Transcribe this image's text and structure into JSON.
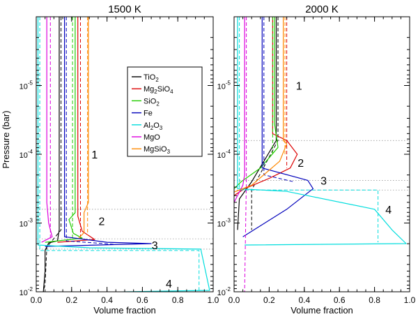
{
  "figure": {
    "ylabel": "Pressure (bar)",
    "legend": {
      "placement": "inside-left-panel",
      "entries": [
        {
          "key": "TiO2",
          "base": "TiO",
          "sub": "2",
          "tail": "",
          "color": "#000000"
        },
        {
          "key": "Mg2SiO4",
          "base": "Mg",
          "sub": "2",
          "tail": "SiO",
          "sub2": "4",
          "color": "#dd0000"
        },
        {
          "key": "SiO2",
          "base": "SiO",
          "sub": "2",
          "tail": "",
          "color": "#22cc00"
        },
        {
          "key": "Fe",
          "base": "Fe",
          "sub": "",
          "tail": "",
          "color": "#0000bb"
        },
        {
          "key": "Al2O3",
          "base": "Al",
          "sub": "2",
          "tail": "O",
          "sub2": "3",
          "color": "#00dddd"
        },
        {
          "key": "MgO",
          "base": "MgO",
          "sub": "",
          "tail": "",
          "color": "#dd00dd"
        },
        {
          "key": "MgSiO3",
          "base": "MgSiO",
          "sub": "3",
          "tail": "",
          "color": "#ff8800"
        }
      ]
    }
  },
  "chart_data": [
    {
      "type": "line",
      "title": "1500 K",
      "xlabel": "Volume fraction",
      "ylabel": "Pressure (bar)",
      "xlim": [
        0.0,
        1.0
      ],
      "ylim_log10": [
        -6.0,
        -2.0
      ],
      "y_inverted": true,
      "x_ticks": [
        "0.0",
        "0.2",
        "0.4",
        "0.6",
        "0.8",
        "1.0"
      ],
      "y_ticks": [
        {
          "exp": -5,
          "base": "10",
          "sup": "-5"
        },
        {
          "exp": -4,
          "base": "10",
          "sup": "-4"
        },
        {
          "exp": -3,
          "base": "10",
          "sup": "-3"
        },
        {
          "exp": -2,
          "base": "10",
          "sup": "-2"
        }
      ],
      "layer_boundaries_log10": [
        -3.2,
        -2.77,
        -2.62
      ],
      "annotations": [
        {
          "text": "1",
          "x": 0.33,
          "logp": -4.0
        },
        {
          "text": "2",
          "x": 0.37,
          "logp": -3.03
        },
        {
          "text": "3",
          "x": 0.67,
          "logp": -2.68
        },
        {
          "text": "4",
          "x": 0.75,
          "logp": -2.12
        }
      ],
      "series": [
        {
          "name": "TiO2",
          "color": "#000000",
          "solid": [
            [
              0.13,
              -6
            ],
            [
              0.13,
              -2.9
            ],
            [
              0.12,
              -2.74
            ],
            [
              0.07,
              -2.71
            ],
            [
              0.05,
              -2.6
            ],
            [
              0.05,
              -2.3
            ],
            [
              0.04,
              -2.0
            ]
          ],
          "dashed": [
            [
              0.14,
              -6
            ],
            [
              0.14,
              -2.9
            ],
            [
              0.06,
              -2.65
            ],
            [
              0.05,
              -2.1
            ],
            [
              0.04,
              -2.0
            ]
          ]
        },
        {
          "name": "Mg2SiO4",
          "color": "#dd0000",
          "solid": [
            [
              0.235,
              -6
            ],
            [
              0.235,
              -3.1
            ],
            [
              0.26,
              -2.88
            ],
            [
              0.33,
              -2.76
            ],
            [
              0.12,
              -2.72
            ]
          ],
          "dashed": [
            [
              0.25,
              -6
            ],
            [
              0.25,
              -2.78
            ]
          ]
        },
        {
          "name": "SiO2",
          "color": "#22cc00",
          "solid": [
            [
              0.22,
              -6
            ],
            [
              0.22,
              -3.15
            ],
            [
              0.185,
              -3.05
            ],
            [
              0.21,
              -2.85
            ],
            [
              0.26,
              -2.78
            ],
            [
              0.05,
              -2.72
            ]
          ],
          "dashed": [
            [
              0.205,
              -6
            ],
            [
              0.205,
              -2.78
            ]
          ]
        },
        {
          "name": "Fe",
          "color": "#0000bb",
          "solid": [
            [
              0.16,
              -6
            ],
            [
              0.16,
              -2.8
            ],
            [
              0.4,
              -2.72
            ],
            [
              0.65,
              -2.7
            ],
            [
              0.05,
              -2.66
            ]
          ],
          "dashed": [
            [
              0.17,
              -6
            ],
            [
              0.17,
              -2.74
            ],
            [
              0.44,
              -2.69
            ]
          ]
        },
        {
          "name": "Al2O3",
          "color": "#00dddd",
          "solid": [
            [
              0.01,
              -6
            ],
            [
              0.01,
              -2.68
            ],
            [
              0.3,
              -2.64
            ],
            [
              0.93,
              -2.62
            ],
            [
              0.98,
              -2.02
            ],
            [
              0.03,
              -1.98
            ]
          ],
          "dashed": [
            [
              0.02,
              -6
            ],
            [
              0.02,
              -2.6
            ],
            [
              0.92,
              -2.6
            ],
            [
              0.92,
              -2.0
            ]
          ]
        },
        {
          "name": "MgO",
          "color": "#dd00dd",
          "solid": [
            [
              0.06,
              -6
            ],
            [
              0.06,
              -3.3
            ],
            [
              0.07,
              -3.0
            ],
            [
              0.09,
              -2.8
            ],
            [
              0.03,
              -2.72
            ]
          ],
          "dashed": [
            [
              0.08,
              -6
            ],
            [
              0.08,
              -2.78
            ]
          ]
        },
        {
          "name": "MgSiO3",
          "color": "#ff8800",
          "solid": [
            [
              0.295,
              -6
            ],
            [
              0.295,
              -3.3
            ],
            [
              0.27,
              -3.15
            ],
            [
              0.27,
              -2.86
            ],
            [
              0.24,
              -2.78
            ]
          ],
          "dashed": [
            [
              0.29,
              -6
            ],
            [
              0.29,
              -2.82
            ]
          ]
        }
      ]
    },
    {
      "type": "line",
      "title": "2000 K",
      "xlabel": "Volume fraction",
      "ylabel": "",
      "xlim": [
        0.0,
        1.0
      ],
      "ylim_log10": [
        -6.0,
        -2.0
      ],
      "y_inverted": true,
      "x_ticks": [
        "0.0",
        "0.2",
        "0.4",
        "0.6",
        "0.8",
        "1.0"
      ],
      "y_ticks": [
        {
          "exp": -5,
          "base": "10",
          "sup": "-5"
        },
        {
          "exp": -4,
          "base": "10",
          "sup": "-4"
        },
        {
          "exp": -3,
          "base": "10",
          "sup": "-3"
        },
        {
          "exp": -2,
          "base": "10",
          "sup": "-2"
        }
      ],
      "layer_boundaries_log10": [
        -4.2,
        -3.62,
        -3.48
      ],
      "annotations": [
        {
          "text": "1",
          "x": 0.37,
          "logp": -5.0
        },
        {
          "text": "2",
          "x": 0.38,
          "logp": -3.88
        },
        {
          "text": "3",
          "x": 0.51,
          "logp": -3.62
        },
        {
          "text": "4",
          "x": 0.88,
          "logp": -3.2
        }
      ],
      "series": [
        {
          "name": "TiO2",
          "color": "#000000",
          "solid": [
            [
              0.24,
              -6
            ],
            [
              0.24,
              -4.2
            ],
            [
              0.1,
              -3.6
            ],
            [
              0.03,
              -3.35
            ],
            [
              0.02,
              -2.9
            ]
          ],
          "dashed": [
            [
              0.25,
              -6
            ],
            [
              0.25,
              -4.2
            ],
            [
              0.1,
              -3.48
            ],
            [
              0.1,
              -2.9
            ]
          ]
        },
        {
          "name": "Mg2SiO4",
          "color": "#dd0000",
          "solid": [
            [
              0.22,
              -6
            ],
            [
              0.22,
              -4.3
            ],
            [
              0.3,
              -4.2
            ],
            [
              0.36,
              -4.0
            ],
            [
              0.32,
              -3.8
            ],
            [
              0.2,
              -3.65
            ],
            [
              0.06,
              -3.5
            ],
            [
              0.0,
              -3.4
            ]
          ],
          "dashed": [
            [
              0.3,
              -6
            ],
            [
              0.3,
              -3.8
            ]
          ]
        },
        {
          "name": "SiO2",
          "color": "#22cc00",
          "solid": [
            [
              0.23,
              -6
            ],
            [
              0.23,
              -4.45
            ],
            [
              0.25,
              -4.1
            ],
            [
              0.15,
              -3.8
            ],
            [
              0.04,
              -3.6
            ],
            [
              0.0,
              -3.5
            ]
          ],
          "dashed": [
            [
              0.22,
              -6
            ],
            [
              0.22,
              -4.0
            ]
          ]
        },
        {
          "name": "Fe",
          "color": "#0000bb",
          "solid": [
            [
              0.16,
              -6
            ],
            [
              0.16,
              -3.8
            ],
            [
              0.42,
              -3.62
            ],
            [
              0.45,
              -3.5
            ],
            [
              0.3,
              -3.2
            ],
            [
              0.05,
              -2.8
            ]
          ],
          "dashed": [
            [
              0.17,
              -6
            ],
            [
              0.17,
              -3.7
            ],
            [
              0.34,
              -3.6
            ]
          ]
        },
        {
          "name": "Al2O3",
          "color": "#00dddd",
          "solid": [
            [
              0.02,
              -6
            ],
            [
              0.02,
              -3.5
            ],
            [
              0.3,
              -3.46
            ],
            [
              0.8,
              -3.2
            ],
            [
              0.9,
              -2.9
            ],
            [
              0.98,
              -2.7
            ],
            [
              0.06,
              -2.68
            ]
          ],
          "dashed": [
            [
              0.03,
              -6
            ],
            [
              0.03,
              -3.48
            ],
            [
              0.82,
              -3.48
            ],
            [
              0.82,
              -2.72
            ]
          ]
        },
        {
          "name": "MgO",
          "color": "#dd00dd",
          "solid": [
            [
              0.06,
              -6
            ],
            [
              0.06,
              -3.7
            ],
            [
              0.05,
              -3.55
            ],
            [
              0.02,
              -3.4
            ],
            [
              0.0,
              -3.3
            ]
          ],
          "dashed": [
            [
              0.07,
              -6
            ],
            [
              0.07,
              -3.6
            ],
            [
              0.06,
              -2.0
            ]
          ]
        },
        {
          "name": "MgSiO3",
          "color": "#ff8800",
          "solid": [
            [
              0.28,
              -6
            ],
            [
              0.28,
              -4.2
            ],
            [
              0.3,
              -4.15
            ],
            [
              0.26,
              -3.9
            ],
            [
              0.1,
              -3.55
            ],
            [
              0.0,
              -3.45
            ]
          ],
          "dashed": [
            [
              0.29,
              -6
            ],
            [
              0.29,
              -4.0
            ]
          ]
        }
      ]
    }
  ]
}
